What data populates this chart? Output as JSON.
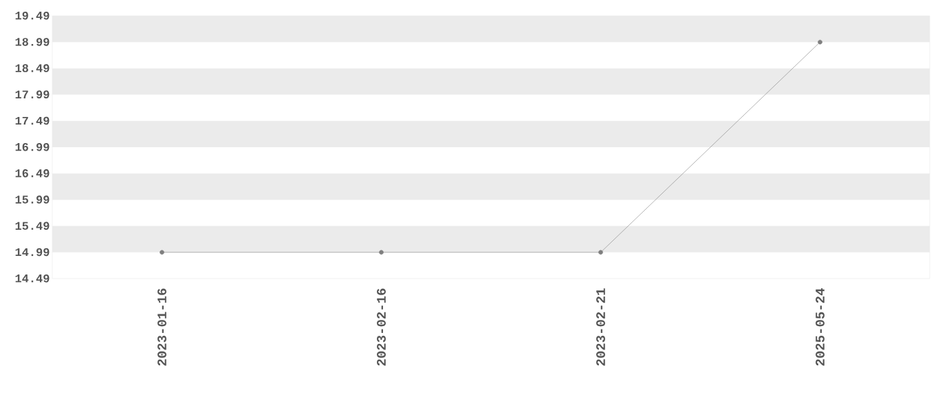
{
  "chart_data": {
    "type": "line",
    "categories": [
      "2023-01-16",
      "2023-02-16",
      "2023-02-21",
      "2025-05-24"
    ],
    "values": [
      14.99,
      14.99,
      14.99,
      18.99
    ],
    "color": "#7f7f7f",
    "marker": "circle",
    "ylim": [
      14.49,
      19.49
    ],
    "yticks": [
      14.49,
      14.99,
      15.49,
      15.99,
      16.49,
      16.99,
      17.49,
      17.99,
      18.49,
      18.99,
      19.49
    ],
    "bands": [
      {
        "axis": "y",
        "from": 14.99,
        "to": 15.49,
        "color": "#ebebeb"
      },
      {
        "axis": "y",
        "from": 15.99,
        "to": 16.49,
        "color": "#ebebeb"
      },
      {
        "axis": "y",
        "from": 16.99,
        "to": 17.49,
        "color": "#ebebeb"
      },
      {
        "axis": "y",
        "from": 17.99,
        "to": 18.49,
        "color": "#ebebeb"
      },
      {
        "axis": "y",
        "from": 18.99,
        "to": 19.49,
        "color": "#ebebeb"
      }
    ]
  }
}
